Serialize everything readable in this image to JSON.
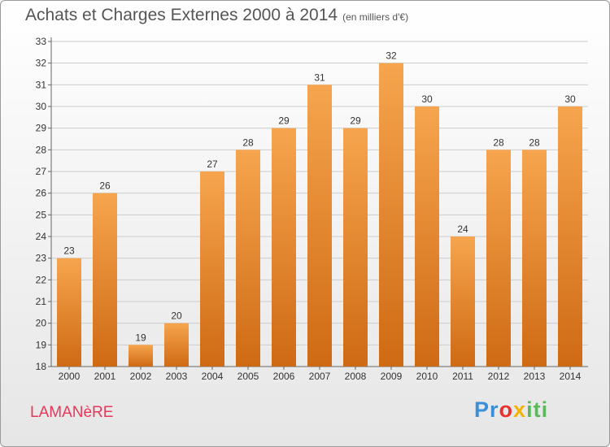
{
  "title": "Achats et Charges Externes 2000 à 2014",
  "title_unit": "(en milliers d'€)",
  "commune": "LAMANèRE",
  "logo": {
    "letters": [
      {
        "char": "P",
        "color": "#3a8fd8"
      },
      {
        "char": "r",
        "color": "#3a8fd8"
      },
      {
        "char": "o",
        "color": "#e8312f"
      },
      {
        "char": "x",
        "color": "#f2b400"
      },
      {
        "char": "i",
        "color": "#5cb85c"
      },
      {
        "char": "t",
        "color": "#5cb85c"
      },
      {
        "char": "i",
        "color": "#5cb85c"
      }
    ]
  },
  "colors": {
    "bar_top": "#f6a54e",
    "bar_bottom": "#cf6a14",
    "grid": "#cccccc",
    "commune": "#e8385a"
  },
  "chart_data": {
    "type": "bar",
    "categories": [
      "2000",
      "2001",
      "2002",
      "2003",
      "2004",
      "2005",
      "2006",
      "2007",
      "2008",
      "2009",
      "2010",
      "2011",
      "2012",
      "2013",
      "2014"
    ],
    "values": [
      23,
      26,
      19,
      20,
      27,
      28,
      29,
      31,
      29,
      32,
      30,
      24,
      28,
      28,
      30
    ],
    "ylim": [
      18,
      33
    ],
    "yticks": [
      18,
      19,
      20,
      21,
      22,
      23,
      24,
      25,
      26,
      27,
      28,
      29,
      30,
      31,
      32,
      33
    ],
    "grid": true,
    "xlabel": "",
    "ylabel": ""
  }
}
